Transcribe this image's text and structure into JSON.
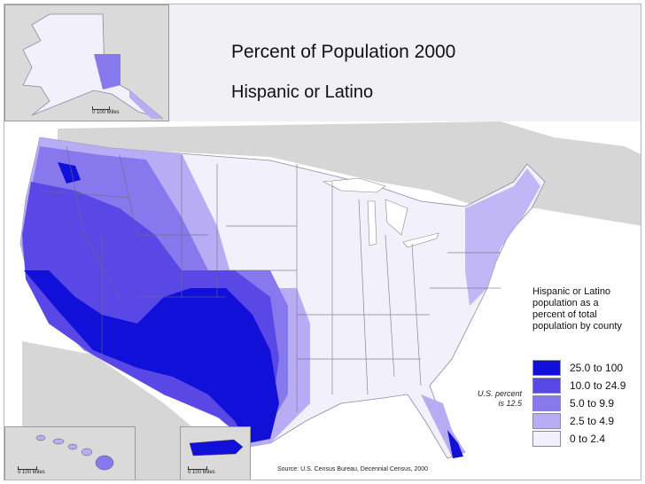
{
  "title": "Percent of Population 2000",
  "subtitle": "Hispanic or Latino",
  "legend": {
    "description": "Hispanic or Latino population as a percent of total population by county",
    "classes": [
      {
        "label": "25.0 to 100",
        "color": "#1010d8"
      },
      {
        "label": "10.0 to 24.9",
        "color": "#5a48e6"
      },
      {
        "label": "5.0 to 9.9",
        "color": "#8878ee"
      },
      {
        "label": "2.5 to 4.9",
        "color": "#b8acf4"
      },
      {
        "label": "0 to 2.4",
        "color": "#f2f0fa"
      }
    ]
  },
  "us_percent": {
    "line1": "U.S. percent",
    "line2": "is 12.5"
  },
  "source": "Source:  U.S. Census Bureau, Decennial Census, 2000",
  "scalebars": {
    "alaska": "0    100 Miles",
    "hawaii": "0    100 Miles",
    "puerto_rico": "0    100 Miles"
  },
  "colors": {
    "background_land": "#d9d9d9",
    "water": "#ffffff",
    "county_border": "#9a9aaa"
  }
}
